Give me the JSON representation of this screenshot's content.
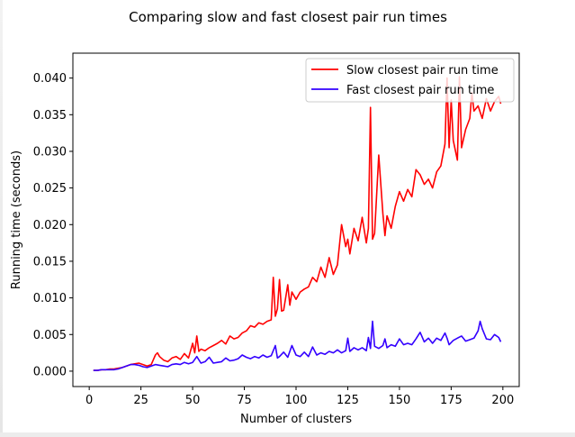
{
  "chart_data": {
    "type": "line",
    "title": "Comparing slow and fast closest pair run times",
    "xlabel": "Number of clusters",
    "ylabel": "Running time (seconds)",
    "xlim": [
      -7.9,
      207.9
    ],
    "ylim": [
      -0.0021,
      0.0434
    ],
    "xticks": [
      0,
      25,
      50,
      75,
      100,
      125,
      150,
      175,
      200
    ],
    "xtick_labels": [
      "0",
      "25",
      "50",
      "75",
      "100",
      "125",
      "150",
      "175",
      "200"
    ],
    "yticks": [
      0,
      0.005,
      0.01,
      0.015,
      0.02,
      0.025,
      0.03,
      0.035,
      0.04
    ],
    "ytick_labels": [
      "0.000",
      "0.005",
      "0.010",
      "0.015",
      "0.020",
      "0.025",
      "0.030",
      "0.035",
      "0.040"
    ],
    "grid": false,
    "legend_position": "top-right",
    "series": [
      {
        "name": "Slow closest pair run time",
        "color": "#ff0000",
        "x": [
          2,
          4,
          6,
          8,
          10,
          12,
          14,
          16,
          18,
          20,
          22,
          24,
          26,
          28,
          30,
          32,
          33,
          34,
          36,
          38,
          40,
          42,
          44,
          46,
          48,
          50,
          51,
          52,
          53,
          54,
          56,
          58,
          60,
          62,
          64,
          66,
          68,
          70,
          72,
          74,
          76,
          78,
          80,
          82,
          84,
          86,
          88,
          89,
          90,
          91,
          92,
          93,
          94,
          96,
          97,
          98,
          100,
          102,
          104,
          106,
          108,
          110,
          112,
          114,
          116,
          118,
          120,
          122,
          124,
          125,
          126,
          128,
          130,
          132,
          134,
          135,
          136,
          137,
          138,
          140,
          142,
          143,
          144,
          146,
          148,
          150,
          152,
          154,
          156,
          158,
          160,
          162,
          164,
          166,
          168,
          170,
          172,
          173,
          174,
          175,
          176,
          178,
          179,
          180,
          182,
          184,
          185,
          186,
          188,
          190,
          192,
          194,
          196,
          198,
          199
        ],
        "y": [
          0.0001,
          0.0001,
          0.0002,
          0.0002,
          0.0003,
          0.0003,
          0.0004,
          0.0005,
          0.0007,
          0.0009,
          0.001,
          0.0011,
          0.0009,
          0.0007,
          0.0009,
          0.0022,
          0.0025,
          0.002,
          0.0015,
          0.0013,
          0.0018,
          0.002,
          0.0016,
          0.0024,
          0.0018,
          0.0038,
          0.0025,
          0.0048,
          0.0027,
          0.003,
          0.0028,
          0.0032,
          0.0035,
          0.0038,
          0.0042,
          0.0037,
          0.0048,
          0.0044,
          0.0046,
          0.0052,
          0.0055,
          0.0062,
          0.006,
          0.0066,
          0.0064,
          0.0068,
          0.007,
          0.0128,
          0.0075,
          0.0085,
          0.0125,
          0.0082,
          0.0083,
          0.0118,
          0.009,
          0.0108,
          0.0098,
          0.0108,
          0.0112,
          0.0115,
          0.0128,
          0.0122,
          0.0142,
          0.0128,
          0.0155,
          0.0132,
          0.0145,
          0.02,
          0.017,
          0.018,
          0.016,
          0.0195,
          0.0178,
          0.021,
          0.0175,
          0.0195,
          0.036,
          0.018,
          0.0188,
          0.0295,
          0.0215,
          0.0185,
          0.0212,
          0.0195,
          0.0225,
          0.0245,
          0.0232,
          0.0248,
          0.0238,
          0.0275,
          0.0268,
          0.0255,
          0.0262,
          0.025,
          0.0272,
          0.028,
          0.031,
          0.04,
          0.0305,
          0.037,
          0.0315,
          0.0288,
          0.0402,
          0.0305,
          0.033,
          0.0345,
          0.038,
          0.0355,
          0.0362,
          0.0345,
          0.0372,
          0.0355,
          0.0368,
          0.0375,
          0.0365
        ]
      },
      {
        "name": "Fast closest pair run time",
        "color": "#3300ff",
        "x": [
          2,
          4,
          6,
          8,
          10,
          12,
          14,
          16,
          18,
          20,
          22,
          24,
          26,
          28,
          30,
          32,
          34,
          36,
          38,
          40,
          42,
          44,
          46,
          48,
          50,
          52,
          54,
          56,
          58,
          60,
          62,
          64,
          66,
          68,
          70,
          72,
          74,
          76,
          78,
          80,
          82,
          84,
          86,
          88,
          90,
          91,
          92,
          94,
          96,
          98,
          100,
          102,
          104,
          106,
          108,
          110,
          112,
          114,
          116,
          118,
          120,
          122,
          124,
          125,
          126,
          128,
          130,
          132,
          134,
          135,
          136,
          137,
          138,
          140,
          142,
          143,
          144,
          146,
          148,
          150,
          152,
          154,
          156,
          158,
          160,
          162,
          164,
          166,
          168,
          170,
          172,
          173,
          174,
          176,
          178,
          180,
          182,
          184,
          186,
          188,
          189,
          190,
          192,
          194,
          196,
          198,
          199
        ],
        "y": [
          0.0001,
          0.0001,
          0.0002,
          0.0002,
          0.0002,
          0.0002,
          0.0003,
          0.0005,
          0.0007,
          0.0009,
          0.0009,
          0.0008,
          0.0006,
          0.0005,
          0.0007,
          0.0009,
          0.0008,
          0.0007,
          0.0006,
          0.0009,
          0.001,
          0.0009,
          0.0012,
          0.001,
          0.0012,
          0.002,
          0.0011,
          0.0013,
          0.0019,
          0.0011,
          0.0012,
          0.0013,
          0.0018,
          0.0014,
          0.0015,
          0.0017,
          0.0022,
          0.0019,
          0.0017,
          0.002,
          0.0018,
          0.0022,
          0.0019,
          0.0021,
          0.0035,
          0.0018,
          0.002,
          0.0026,
          0.0019,
          0.0035,
          0.0022,
          0.002,
          0.0026,
          0.002,
          0.0033,
          0.0022,
          0.0025,
          0.0023,
          0.0027,
          0.0025,
          0.0029,
          0.0025,
          0.0028,
          0.0045,
          0.0027,
          0.0032,
          0.0029,
          0.0032,
          0.0028,
          0.0046,
          0.0031,
          0.0068,
          0.0034,
          0.0031,
          0.0035,
          0.0044,
          0.0032,
          0.0036,
          0.0034,
          0.0044,
          0.0036,
          0.0038,
          0.0036,
          0.0044,
          0.0053,
          0.004,
          0.0045,
          0.0038,
          0.0045,
          0.0042,
          0.0052,
          0.0045,
          0.0036,
          0.0042,
          0.0045,
          0.0048,
          0.0041,
          0.0043,
          0.0045,
          0.0055,
          0.0068,
          0.0058,
          0.0044,
          0.0043,
          0.005,
          0.0046,
          0.004
        ]
      }
    ]
  }
}
